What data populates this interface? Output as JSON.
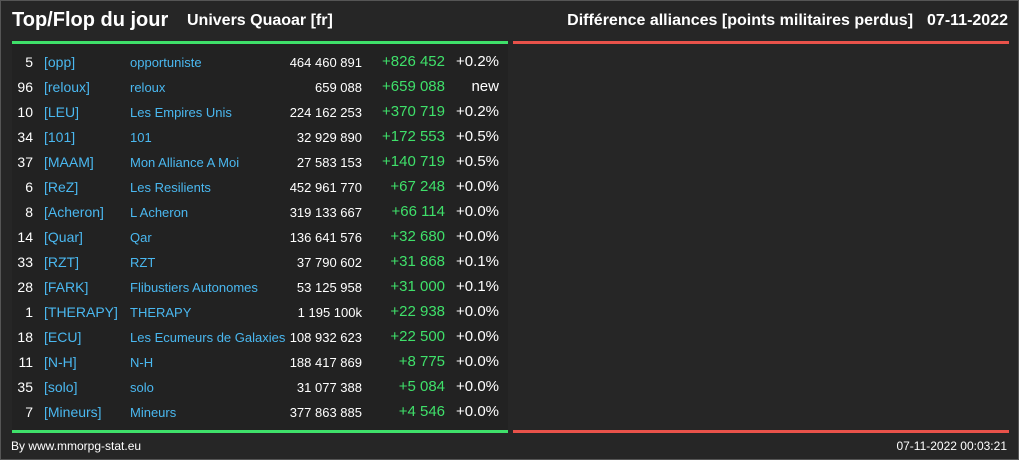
{
  "header": {
    "title": "Top/Flop du jour",
    "universe": "Univers Quaoar [fr]",
    "subtitle": "Différence alliances [points militaires perdus]",
    "date": "07-11-2022"
  },
  "colors": {
    "background": "#262626",
    "positive": "#3fe06a",
    "negative": "#e8524a",
    "link": "#4ab8f0"
  },
  "top": [
    {
      "rank": "5",
      "tag": "[opp]",
      "name": "opportuniste",
      "total": "464 460 891",
      "diff": "+826 452",
      "pct": "+0.2%"
    },
    {
      "rank": "96",
      "tag": "[reloux]",
      "name": "reloux",
      "total": "659 088",
      "diff": "+659 088",
      "pct": "new"
    },
    {
      "rank": "10",
      "tag": "[LEU]",
      "name": "Les Empires Unis",
      "total": "224 162 253",
      "diff": "+370 719",
      "pct": "+0.2%"
    },
    {
      "rank": "34",
      "tag": "[101]",
      "name": "101",
      "total": "32 929 890",
      "diff": "+172 553",
      "pct": "+0.5%"
    },
    {
      "rank": "37",
      "tag": "[MAAM]",
      "name": "Mon Alliance A Moi",
      "total": "27 583 153",
      "diff": "+140 719",
      "pct": "+0.5%"
    },
    {
      "rank": "6",
      "tag": "[ReZ]",
      "name": "Les Resilients",
      "total": "452 961 770",
      "diff": "+67 248",
      "pct": "+0.0%"
    },
    {
      "rank": "8",
      "tag": "[Acheron]",
      "name": "L Acheron",
      "total": "319 133 667",
      "diff": "+66 114",
      "pct": "+0.0%"
    },
    {
      "rank": "14",
      "tag": "[Quar]",
      "name": "Qar",
      "total": "136 641 576",
      "diff": "+32 680",
      "pct": "+0.0%"
    },
    {
      "rank": "33",
      "tag": "[RZT]",
      "name": "RZT",
      "total": "37 790 602",
      "diff": "+31 868",
      "pct": "+0.1%"
    },
    {
      "rank": "28",
      "tag": "[FARK]",
      "name": "Flibustiers Autonomes",
      "total": "53 125 958",
      "diff": "+31 000",
      "pct": "+0.1%"
    },
    {
      "rank": "1",
      "tag": "[THERAPY]",
      "name": "THERAPY",
      "total": "1 195 100k",
      "diff": "+22 938",
      "pct": "+0.0%"
    },
    {
      "rank": "18",
      "tag": "[ECU]",
      "name": "Les Ecumeurs de Galaxies",
      "total": "108 932 623",
      "diff": "+22 500",
      "pct": "+0.0%"
    },
    {
      "rank": "11",
      "tag": "[N-H]",
      "name": "N-H",
      "total": "188 417 869",
      "diff": "+8 775",
      "pct": "+0.0%"
    },
    {
      "rank": "35",
      "tag": "[solo]",
      "name": "solo",
      "total": "31 077 388",
      "diff": "+5 084",
      "pct": "+0.0%"
    },
    {
      "rank": "7",
      "tag": "[Mineurs]",
      "name": "Mineurs",
      "total": "377 863 885",
      "diff": "+4 546",
      "pct": "+0.0%"
    }
  ],
  "footer": {
    "credit": "By www.mmorpg-stat.eu",
    "timestamp": "07-11-2022 00:03:21"
  }
}
